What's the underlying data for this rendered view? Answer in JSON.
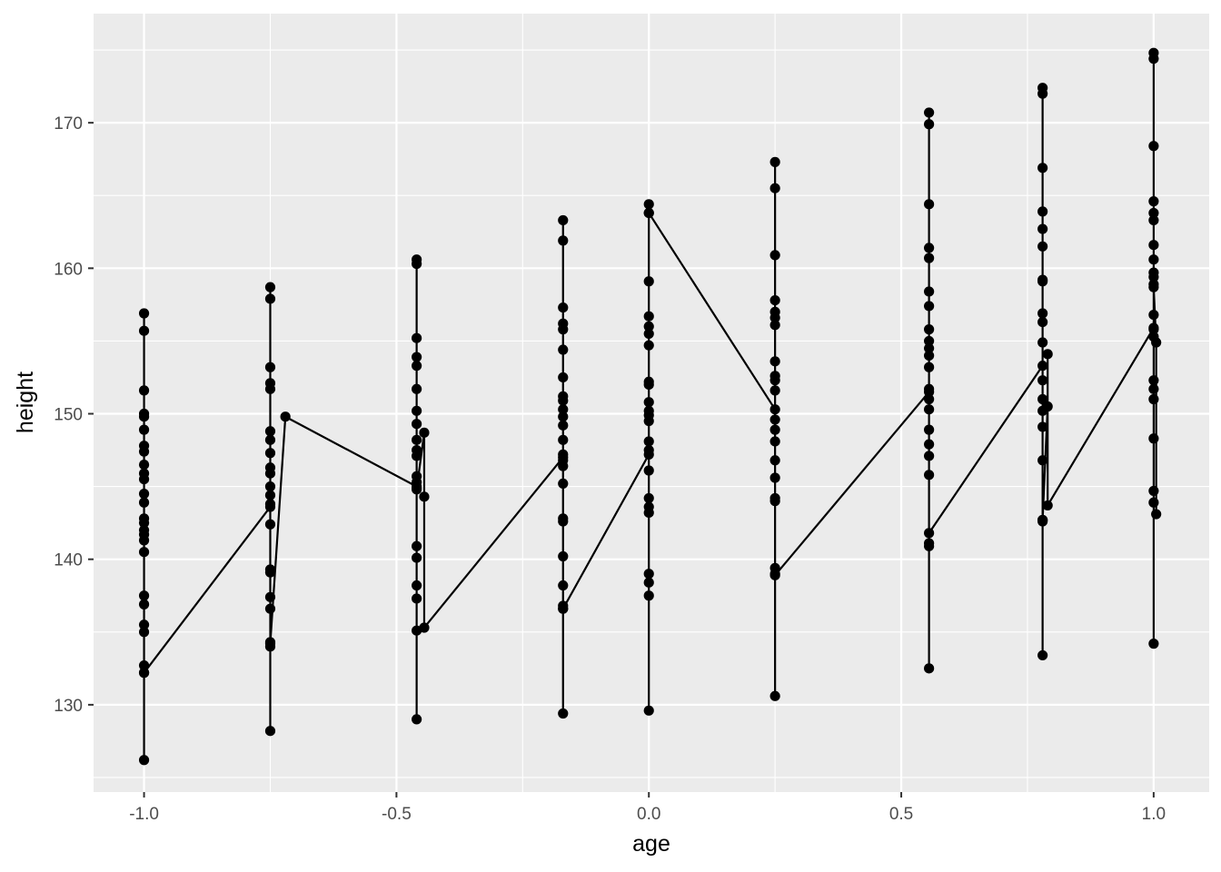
{
  "chart_data": {
    "type": "line",
    "title": "",
    "xlabel": "age",
    "ylabel": "height",
    "xlim": [
      -1.1,
      1.11
    ],
    "ylim": [
      124,
      177.5
    ],
    "x_ticks": [
      -1.0,
      -0.5,
      0.0,
      0.5,
      1.0
    ],
    "x_tick_labels": [
      "-1.0",
      "-0.5",
      "0.0",
      "0.5",
      "1.0"
    ],
    "y_ticks": [
      130,
      140,
      150,
      160,
      170
    ],
    "y_tick_labels": [
      "130",
      "140",
      "150",
      "160",
      "170"
    ],
    "grid": true,
    "legend": "none",
    "colors": {
      "panel": "#ebebeb",
      "grid": "#ffffff",
      "series": "#000000",
      "text": "#4d4d4d"
    },
    "series": [
      {
        "points": [
          [
            -1.0,
            126.2
          ],
          [
            -1.0,
            132.2
          ],
          [
            -1.0,
            132.7
          ],
          [
            -1.0,
            135.0
          ],
          [
            -1.0,
            135.5
          ],
          [
            -1.0,
            136.9
          ],
          [
            -1.0,
            137.5
          ],
          [
            -1.0,
            140.5
          ],
          [
            -1.0,
            141.3
          ],
          [
            -1.0,
            141.7
          ],
          [
            -1.0,
            142.0
          ],
          [
            -1.0,
            142.5
          ],
          [
            -1.0,
            142.8
          ],
          [
            -1.0,
            143.9
          ],
          [
            -1.0,
            144.5
          ],
          [
            -1.0,
            145.5
          ],
          [
            -1.0,
            145.9
          ],
          [
            -1.0,
            146.5
          ],
          [
            -1.0,
            147.4
          ],
          [
            -1.0,
            147.8
          ],
          [
            -1.0,
            148.9
          ],
          [
            -1.0,
            149.8
          ],
          [
            -1.0,
            150.0
          ],
          [
            -1.0,
            151.6
          ],
          [
            -1.0,
            155.7
          ],
          [
            -1.0,
            156.9
          ],
          [
            -1.0,
            132.2
          ],
          [
            -0.75,
            143.6
          ],
          [
            -0.75,
            128.2
          ],
          [
            -0.75,
            134.0
          ],
          [
            -0.75,
            134.3
          ],
          [
            -0.75,
            136.6
          ],
          [
            -0.75,
            137.4
          ],
          [
            -0.75,
            139.1
          ],
          [
            -0.75,
            139.3
          ],
          [
            -0.75,
            142.4
          ],
          [
            -0.75,
            143.8
          ],
          [
            -0.75,
            144.4
          ],
          [
            -0.75,
            145.0
          ],
          [
            -0.75,
            145.9
          ],
          [
            -0.75,
            146.3
          ],
          [
            -0.75,
            147.3
          ],
          [
            -0.75,
            148.2
          ],
          [
            -0.75,
            148.8
          ],
          [
            -0.75,
            151.7
          ],
          [
            -0.75,
            152.1
          ],
          [
            -0.75,
            153.2
          ],
          [
            -0.75,
            157.9
          ],
          [
            -0.75,
            158.7
          ],
          [
            -0.75,
            134.2
          ],
          [
            -0.72,
            149.8
          ],
          [
            -0.46,
            145.0
          ],
          [
            -0.46,
            129.0
          ],
          [
            -0.46,
            135.1
          ],
          [
            -0.46,
            137.3
          ],
          [
            -0.46,
            138.2
          ],
          [
            -0.46,
            140.1
          ],
          [
            -0.46,
            140.9
          ],
          [
            -0.46,
            144.9
          ],
          [
            -0.46,
            145.3
          ],
          [
            -0.46,
            145.7
          ],
          [
            -0.46,
            147.1
          ],
          [
            -0.46,
            147.5
          ],
          [
            -0.46,
            148.2
          ],
          [
            -0.46,
            149.3
          ],
          [
            -0.46,
            150.2
          ],
          [
            -0.46,
            151.7
          ],
          [
            -0.46,
            153.3
          ],
          [
            -0.46,
            153.9
          ],
          [
            -0.46,
            155.2
          ],
          [
            -0.46,
            160.3
          ],
          [
            -0.46,
            160.6
          ],
          [
            -0.46,
            144.8
          ],
          [
            -0.445,
            148.7
          ],
          [
            -0.445,
            144.3
          ],
          [
            -0.445,
            135.3
          ],
          [
            -0.17,
            147.0
          ],
          [
            -0.17,
            129.4
          ],
          [
            -0.17,
            136.6
          ],
          [
            -0.17,
            136.8
          ],
          [
            -0.17,
            138.2
          ],
          [
            -0.17,
            140.2
          ],
          [
            -0.17,
            142.6
          ],
          [
            -0.17,
            142.8
          ],
          [
            -0.17,
            145.2
          ],
          [
            -0.17,
            146.4
          ],
          [
            -0.17,
            146.8
          ],
          [
            -0.17,
            147.2
          ],
          [
            -0.17,
            148.2
          ],
          [
            -0.17,
            149.2
          ],
          [
            -0.17,
            149.8
          ],
          [
            -0.17,
            150.3
          ],
          [
            -0.17,
            150.9
          ],
          [
            -0.17,
            151.2
          ],
          [
            -0.17,
            152.5
          ],
          [
            -0.17,
            154.4
          ],
          [
            -0.17,
            155.8
          ],
          [
            -0.17,
            156.2
          ],
          [
            -0.17,
            157.3
          ],
          [
            -0.17,
            161.9
          ],
          [
            -0.17,
            163.3
          ],
          [
            -0.17,
            136.6
          ],
          [
            0.0,
            147.2
          ],
          [
            0.0,
            129.6
          ],
          [
            0.0,
            137.5
          ],
          [
            0.0,
            138.4
          ],
          [
            0.0,
            139.0
          ],
          [
            0.0,
            143.2
          ],
          [
            0.0,
            143.6
          ],
          [
            0.0,
            144.2
          ],
          [
            0.0,
            146.1
          ],
          [
            0.0,
            147.5
          ],
          [
            0.0,
            148.1
          ],
          [
            0.0,
            149.5
          ],
          [
            0.0,
            149.9
          ],
          [
            0.0,
            150.2
          ],
          [
            0.0,
            150.8
          ],
          [
            0.0,
            152.0
          ],
          [
            0.0,
            152.2
          ],
          [
            0.0,
            154.7
          ],
          [
            0.0,
            155.5
          ],
          [
            0.0,
            156.0
          ],
          [
            0.0,
            156.7
          ],
          [
            0.0,
            159.1
          ],
          [
            0.0,
            163.8
          ],
          [
            0.0,
            164.4
          ],
          [
            0.0,
            163.8
          ],
          [
            0.25,
            150.3
          ],
          [
            0.25,
            130.6
          ],
          [
            0.25,
            139.0
          ],
          [
            0.25,
            139.4
          ],
          [
            0.25,
            144.0
          ],
          [
            0.25,
            144.2
          ],
          [
            0.25,
            145.6
          ],
          [
            0.25,
            146.8
          ],
          [
            0.25,
            148.1
          ],
          [
            0.25,
            148.9
          ],
          [
            0.25,
            149.6
          ],
          [
            0.25,
            151.6
          ],
          [
            0.25,
            152.3
          ],
          [
            0.25,
            152.6
          ],
          [
            0.25,
            153.6
          ],
          [
            0.25,
            156.1
          ],
          [
            0.25,
            156.6
          ],
          [
            0.25,
            157.0
          ],
          [
            0.25,
            157.8
          ],
          [
            0.25,
            160.9
          ],
          [
            0.25,
            165.5
          ],
          [
            0.25,
            167.3
          ],
          [
            0.25,
            138.9
          ],
          [
            0.555,
            151.5
          ],
          [
            0.555,
            132.5
          ],
          [
            0.555,
            140.9
          ],
          [
            0.555,
            141.1
          ],
          [
            0.555,
            145.8
          ],
          [
            0.555,
            147.1
          ],
          [
            0.555,
            147.9
          ],
          [
            0.555,
            148.9
          ],
          [
            0.555,
            150.3
          ],
          [
            0.555,
            151.0
          ],
          [
            0.555,
            151.7
          ],
          [
            0.555,
            153.2
          ],
          [
            0.555,
            154.0
          ],
          [
            0.555,
            154.5
          ],
          [
            0.555,
            155.0
          ],
          [
            0.555,
            155.8
          ],
          [
            0.555,
            157.4
          ],
          [
            0.555,
            158.4
          ],
          [
            0.555,
            160.7
          ],
          [
            0.555,
            161.4
          ],
          [
            0.555,
            164.4
          ],
          [
            0.555,
            169.9
          ],
          [
            0.555,
            170.7
          ],
          [
            0.555,
            141.8
          ],
          [
            0.78,
            153.3
          ],
          [
            0.78,
            133.4
          ],
          [
            0.78,
            142.6
          ],
          [
            0.78,
            142.7
          ],
          [
            0.78,
            146.8
          ],
          [
            0.78,
            149.1
          ],
          [
            0.78,
            150.2
          ],
          [
            0.78,
            151.0
          ],
          [
            0.78,
            152.3
          ],
          [
            0.78,
            154.9
          ],
          [
            0.78,
            156.3
          ],
          [
            0.78,
            156.9
          ],
          [
            0.78,
            159.1
          ],
          [
            0.78,
            159.2
          ],
          [
            0.78,
            161.5
          ],
          [
            0.78,
            162.7
          ],
          [
            0.78,
            163.9
          ],
          [
            0.78,
            166.9
          ],
          [
            0.78,
            172.0
          ],
          [
            0.78,
            172.4
          ],
          [
            0.78,
            142.7
          ],
          [
            0.79,
            150.5
          ],
          [
            0.79,
            154.1
          ],
          [
            0.79,
            143.7
          ],
          [
            1.0,
            155.9
          ],
          [
            1.0,
            134.2
          ],
          [
            1.0,
            143.9
          ],
          [
            1.0,
            144.7
          ],
          [
            1.0,
            148.3
          ],
          [
            1.0,
            151.0
          ],
          [
            1.0,
            151.7
          ],
          [
            1.0,
            152.3
          ],
          [
            1.0,
            155.3
          ],
          [
            1.0,
            155.8
          ],
          [
            1.0,
            156.8
          ],
          [
            1.0,
            158.9
          ],
          [
            1.0,
            159.4
          ],
          [
            1.0,
            159.7
          ],
          [
            1.0,
            160.6
          ],
          [
            1.0,
            161.6
          ],
          [
            1.0,
            163.3
          ],
          [
            1.0,
            163.8
          ],
          [
            1.0,
            164.6
          ],
          [
            1.0,
            168.4
          ],
          [
            1.0,
            174.4
          ],
          [
            1.0,
            174.8
          ],
          [
            1.0,
            158.7
          ],
          [
            1.005,
            154.9
          ],
          [
            1.005,
            143.1
          ]
        ]
      }
    ]
  }
}
